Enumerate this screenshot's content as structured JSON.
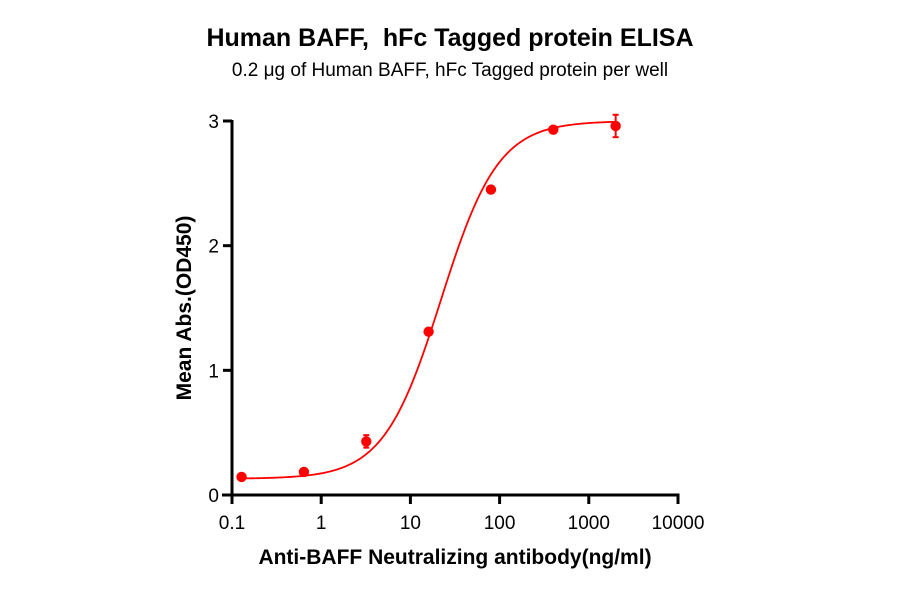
{
  "chart": {
    "title": "Human BAFF,  hFc Tagged protein ELISA",
    "subtitle": "0.2 μg of Human BAFF, hFc Tagged protein per well",
    "xlabel": "Anti-BAFF Neutralizing antibody(ng/ml)",
    "ylabel": "Mean Abs.(OD450)",
    "x_ticks": [
      "0.1",
      "1",
      "10",
      "100",
      "1000",
      "10000"
    ],
    "y_ticks": [
      "0",
      "1",
      "2",
      "3"
    ],
    "series_color": "#ff0000"
  },
  "chart_data": {
    "type": "scatter",
    "title": "Human BAFF,  hFc Tagged protein ELISA",
    "subtitle": "0.2 μg of Human BAFF, hFc Tagged protein per well",
    "xlabel": "Anti-BAFF Neutralizing antibody(ng/ml)",
    "ylabel": "Mean Abs.(OD450)",
    "xscale": "log",
    "xlim": [
      0.1,
      10000
    ],
    "ylim": [
      0,
      3
    ],
    "x_tick_labels": [
      "0.1",
      "1",
      "10",
      "100",
      "1000",
      "10000"
    ],
    "y_tick_labels": [
      "0",
      "1",
      "2",
      "3"
    ],
    "grid": false,
    "legend": null,
    "series": [
      {
        "name": "Human BAFF, hFc Tagged protein",
        "color": "#ff0000",
        "x": [
          0.128,
          0.64,
          3.2,
          16,
          80,
          400,
          2000
        ],
        "y": [
          0.145,
          0.185,
          0.43,
          1.31,
          2.45,
          2.93,
          2.96
        ],
        "error": [
          0.01,
          0.01,
          0.05,
          0.02,
          0.02,
          0.02,
          0.09
        ],
        "fit": {
          "model": "4PL",
          "bottom": 0.13,
          "top": 3.0,
          "ec50": 22,
          "hill": 1.35
        }
      }
    ]
  }
}
